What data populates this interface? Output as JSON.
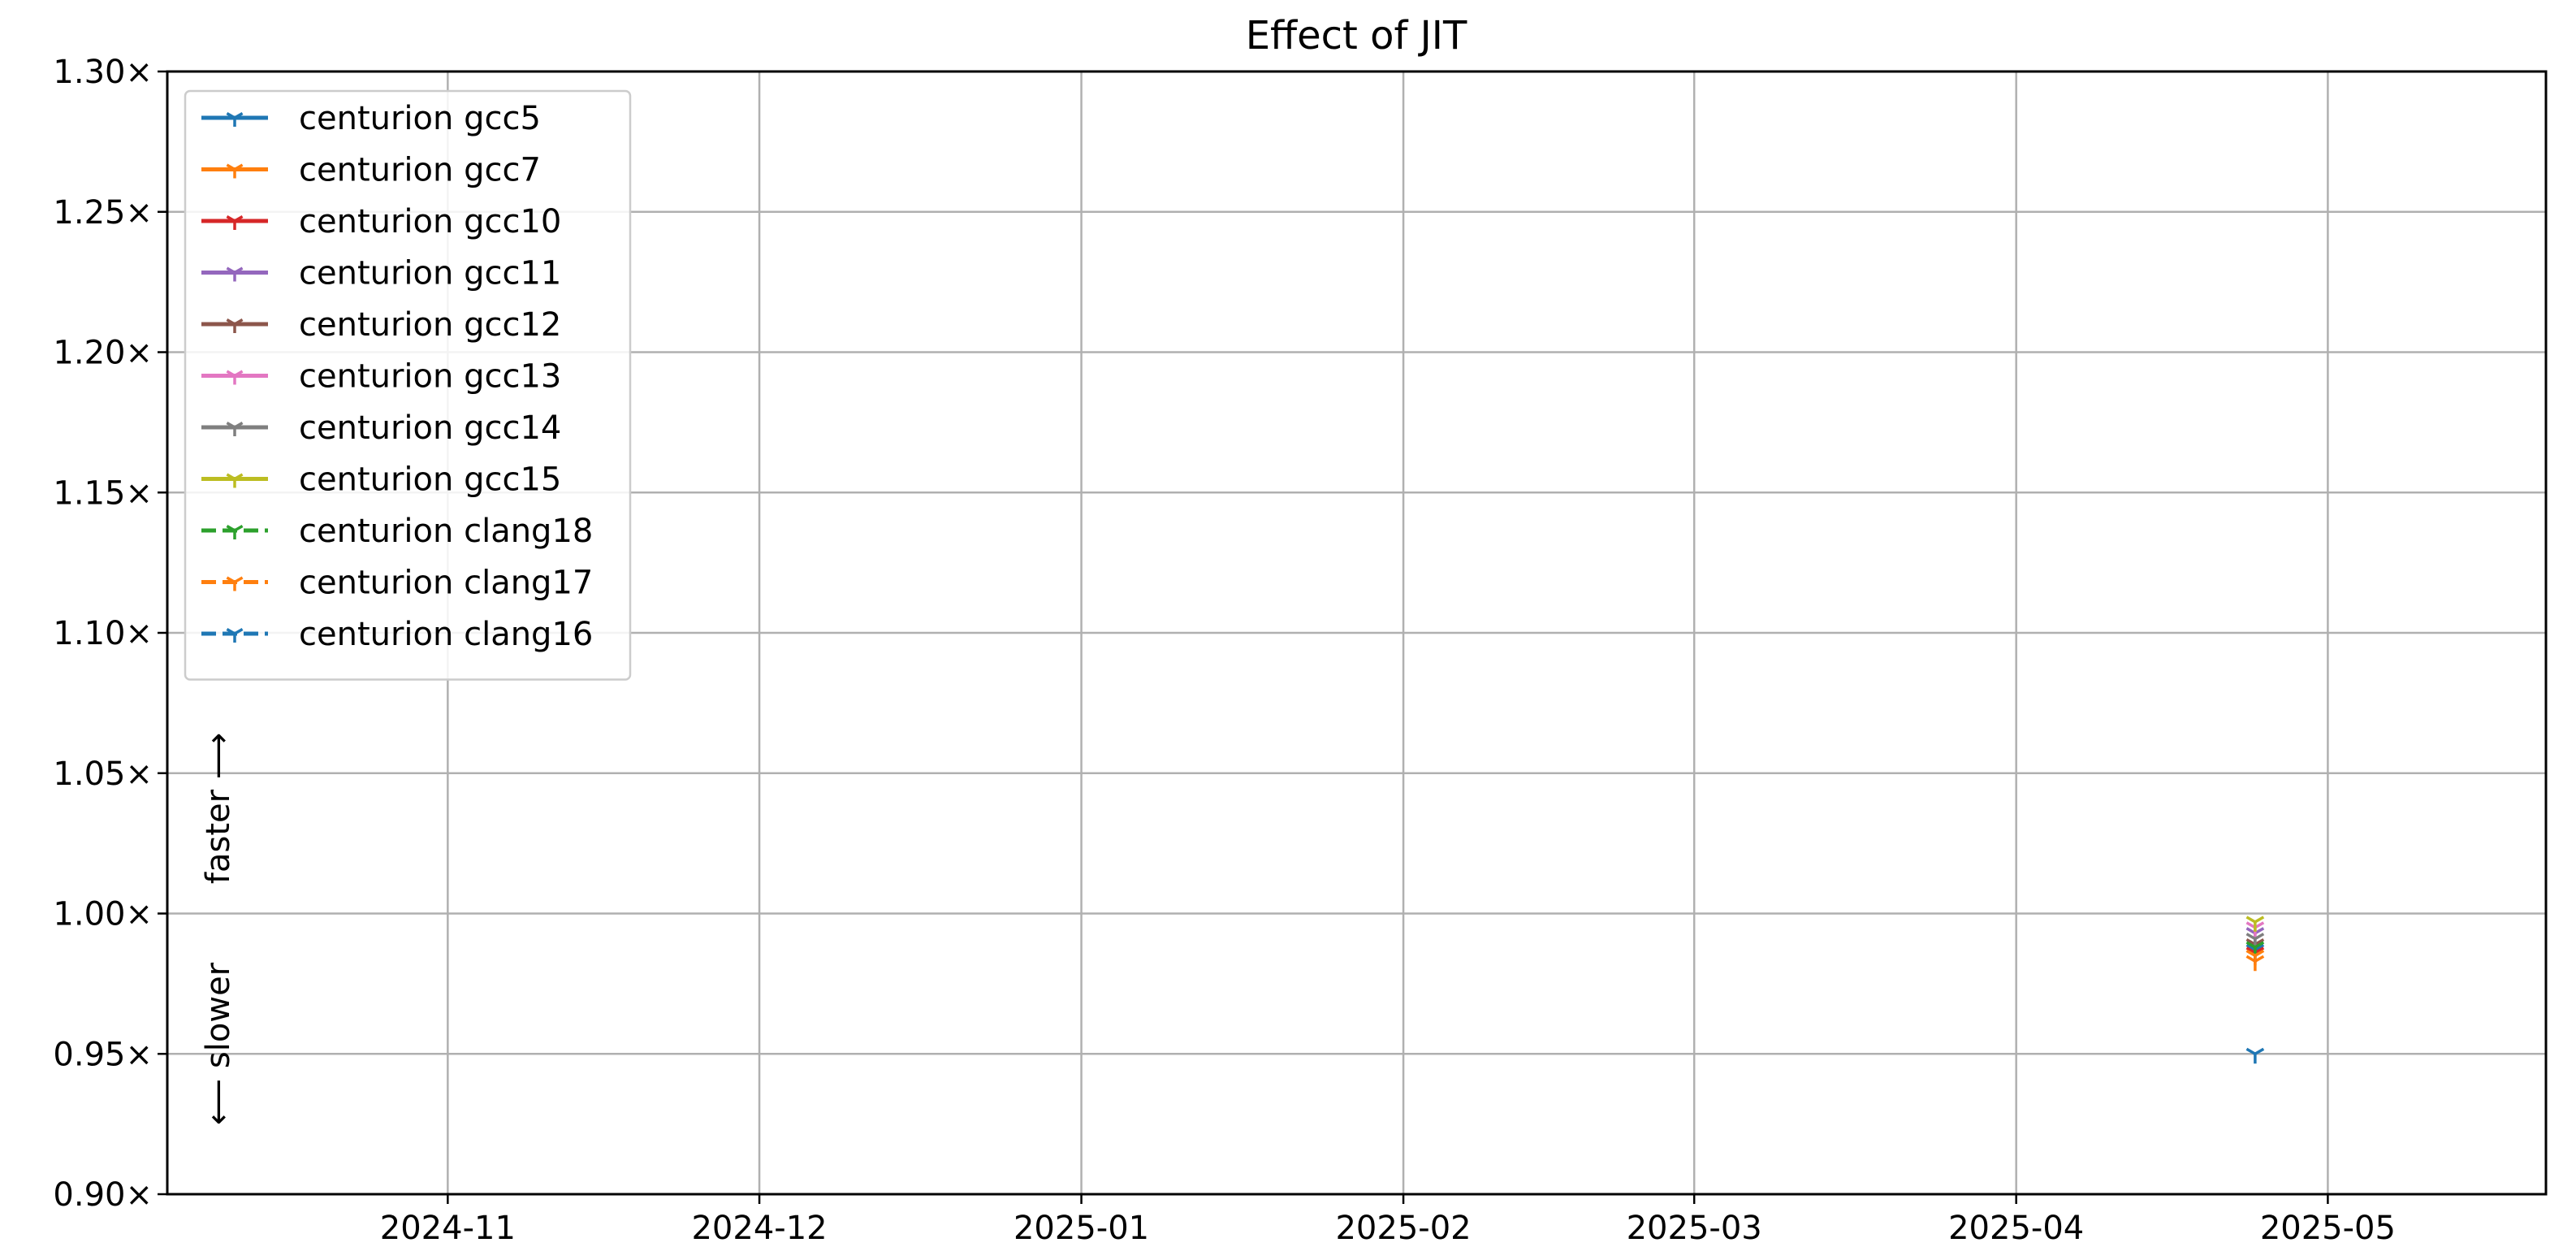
{
  "chart_data": {
    "type": "line",
    "title": "Effect of JIT",
    "xlabel": "",
    "ylabel": "",
    "x_axis": {
      "type": "date",
      "range": [
        "2024-10-05",
        "2025-05-22"
      ],
      "ticks": [
        "2024-11-01",
        "2024-12-01",
        "2025-01-01",
        "2025-02-01",
        "2025-03-01",
        "2025-04-01",
        "2025-05-01"
      ],
      "tick_labels": [
        "2024-11",
        "2024-12",
        "2025-01",
        "2025-02",
        "2025-03",
        "2025-04",
        "2025-05"
      ]
    },
    "y_axis": {
      "range": [
        0.9,
        1.3
      ],
      "ticks": [
        0.9,
        0.95,
        1.0,
        1.05,
        1.1,
        1.15,
        1.2,
        1.25,
        1.3
      ],
      "tick_labels": [
        "0.90×",
        "0.95×",
        "1.00×",
        "1.05×",
        "1.10×",
        "1.15×",
        "1.20×",
        "1.25×",
        "1.30×"
      ]
    },
    "grid": true,
    "legend_position": "top-left",
    "annotations": {
      "faster": "faster ⟶",
      "slower": "⟵ slower"
    },
    "series": [
      {
        "name": "centurion gcc5",
        "color": "#1f77b4",
        "dash": "solid",
        "points": [
          {
            "x": "2025-04-24",
            "y": 0.987
          }
        ]
      },
      {
        "name": "centurion gcc7",
        "color": "#ff7f0e",
        "dash": "solid",
        "points": [
          {
            "x": "2025-04-24",
            "y": 0.983
          }
        ]
      },
      {
        "name": "centurion gcc10",
        "color": "#d62728",
        "dash": "solid",
        "points": [
          {
            "x": "2025-04-24",
            "y": 0.986
          }
        ]
      },
      {
        "name": "centurion gcc11",
        "color": "#9467bd",
        "dash": "solid",
        "points": [
          {
            "x": "2025-04-24",
            "y": 0.993
          }
        ]
      },
      {
        "name": "centurion gcc12",
        "color": "#8c564b",
        "dash": "solid",
        "points": [
          {
            "x": "2025-04-24",
            "y": 0.989
          }
        ]
      },
      {
        "name": "centurion gcc13",
        "color": "#e377c2",
        "dash": "solid",
        "points": [
          {
            "x": "2025-04-24",
            "y": 0.995
          }
        ]
      },
      {
        "name": "centurion gcc14",
        "color": "#7f7f7f",
        "dash": "solid",
        "points": [
          {
            "x": "2025-04-24",
            "y": 0.991
          }
        ]
      },
      {
        "name": "centurion gcc15",
        "color": "#bcbd22",
        "dash": "solid",
        "points": [
          {
            "x": "2025-04-24",
            "y": 0.997
          }
        ]
      },
      {
        "name": "centurion clang18",
        "color": "#2ca02c",
        "dash": "dashed",
        "points": [
          {
            "x": "2025-04-24",
            "y": 0.988
          }
        ]
      },
      {
        "name": "centurion clang17",
        "color": "#ff7f0e",
        "dash": "dashed",
        "points": [
          {
            "x": "2025-04-24",
            "y": 0.985
          }
        ]
      },
      {
        "name": "centurion clang16",
        "color": "#1f77b4",
        "dash": "dashed",
        "points": [
          {
            "x": "2025-04-24",
            "y": 0.95
          }
        ]
      }
    ]
  }
}
